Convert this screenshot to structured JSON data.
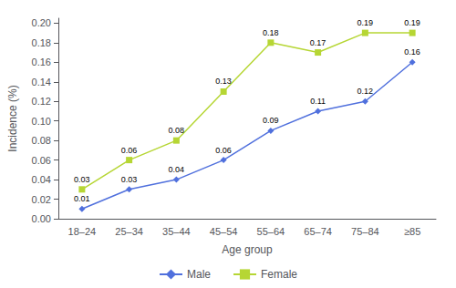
{
  "chart_data": {
    "type": "line",
    "categories": [
      "18–24",
      "25–34",
      "35–44",
      "45–54",
      "55–64",
      "65–74",
      "75–84",
      "≥85"
    ],
    "series": [
      {
        "name": "Male",
        "values": [
          0.01,
          0.03,
          0.04,
          0.06,
          0.09,
          0.11,
          0.12,
          0.16
        ],
        "marker": "diamond"
      },
      {
        "name": "Female",
        "values": [
          0.03,
          0.06,
          0.08,
          0.13,
          0.18,
          0.17,
          0.19,
          0.19
        ],
        "marker": "square"
      }
    ],
    "xlabel": "Age group",
    "ylabel": "Incidence (%)",
    "ylim": [
      0.0,
      0.205
    ],
    "yticks": [
      {
        "value": 0.0,
        "label": "0.00"
      },
      {
        "value": 0.02,
        "label": "0.02"
      },
      {
        "value": 0.04,
        "label": "0.04"
      },
      {
        "value": 0.06,
        "label": "0.06"
      },
      {
        "value": 0.08,
        "label": "0.08"
      },
      {
        "value": 0.1,
        "label": "0.10"
      },
      {
        "value": 0.12,
        "label": "0.12"
      },
      {
        "value": 0.14,
        "label": "0.14"
      },
      {
        "value": 0.16,
        "label": "0.16"
      },
      {
        "value": 0.18,
        "label": "0.18"
      },
      {
        "value": 0.2,
        "label": "0.20"
      }
    ],
    "grid": false,
    "legend": "bottom",
    "data_labels": true
  }
}
